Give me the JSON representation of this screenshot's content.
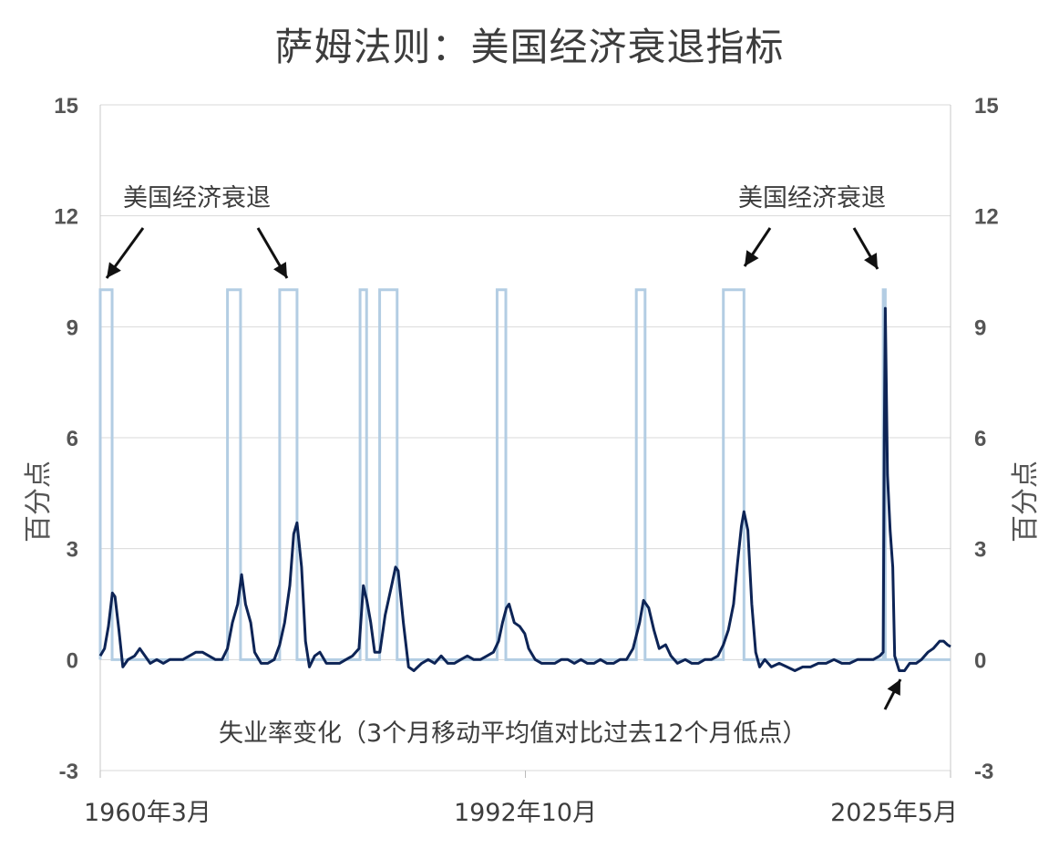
{
  "title": "萨姆法则：美国经济衰退指标",
  "chart_data": {
    "type": "line",
    "title": "萨姆法则：美国经济衰退指标",
    "ylabel_left": "百分点",
    "ylabel_right": "百分点",
    "ylim": [
      -3,
      15
    ],
    "yticks": [
      -3,
      0,
      3,
      6,
      9,
      12,
      15
    ],
    "grid": true,
    "x_range": [
      1960.17,
      2025.33
    ],
    "x_tick_labels": [
      {
        "x": 1960.17,
        "label": "1960年3月"
      },
      {
        "x": 1992.75,
        "label": "1992年10月"
      },
      {
        "x": 2025.33,
        "label": "2025年5月"
      }
    ],
    "annotations": [
      {
        "text": "美国经济衰退",
        "position": "upper-left"
      },
      {
        "text": "美国经济衰退",
        "position": "upper-right"
      },
      {
        "text": "失业率变化（3个月移动平均值对比过去12个月低点）",
        "position": "bottom-right"
      }
    ],
    "series": [
      {
        "name": "美国经济衰退",
        "style": "step",
        "color": "#b3cde3",
        "recession_value": 10,
        "periods": [
          [
            1960.17,
            1961.08
          ],
          [
            1969.92,
            1970.92
          ],
          [
            1973.92,
            1975.25
          ],
          [
            1980.08,
            1980.58
          ],
          [
            1981.58,
            1982.92
          ],
          [
            1990.58,
            1991.25
          ],
          [
            2001.25,
            2001.92
          ],
          [
            2007.92,
            2009.5
          ],
          [
            2020.17,
            2020.33
          ]
        ]
      },
      {
        "name": "失业率变化（3个月移动平均值对比过去12个月低点）",
        "style": "line",
        "color": "#0d2456",
        "points": [
          [
            1960.17,
            0.1
          ],
          [
            1960.5,
            0.3
          ],
          [
            1960.8,
            0.9
          ],
          [
            1961.1,
            1.8
          ],
          [
            1961.3,
            1.7
          ],
          [
            1961.6,
            0.8
          ],
          [
            1961.9,
            -0.2
          ],
          [
            1962.3,
            0.0
          ],
          [
            1962.8,
            0.1
          ],
          [
            1963.2,
            0.3
          ],
          [
            1963.6,
            0.1
          ],
          [
            1964.0,
            -0.1
          ],
          [
            1964.5,
            0.0
          ],
          [
            1965.0,
            -0.1
          ],
          [
            1965.5,
            0.0
          ],
          [
            1966.0,
            0.0
          ],
          [
            1966.5,
            0.0
          ],
          [
            1967.0,
            0.1
          ],
          [
            1967.5,
            0.2
          ],
          [
            1968.0,
            0.2
          ],
          [
            1968.5,
            0.1
          ],
          [
            1969.0,
            0.0
          ],
          [
            1969.5,
            0.0
          ],
          [
            1969.92,
            0.3
          ],
          [
            1970.3,
            1.0
          ],
          [
            1970.7,
            1.5
          ],
          [
            1971.0,
            2.3
          ],
          [
            1971.3,
            1.5
          ],
          [
            1971.7,
            1.0
          ],
          [
            1972.0,
            0.2
          ],
          [
            1972.5,
            -0.1
          ],
          [
            1973.0,
            -0.1
          ],
          [
            1973.5,
            0.0
          ],
          [
            1973.92,
            0.4
          ],
          [
            1974.3,
            1.0
          ],
          [
            1974.7,
            2.0
          ],
          [
            1975.0,
            3.4
          ],
          [
            1975.25,
            3.7
          ],
          [
            1975.6,
            2.5
          ],
          [
            1975.9,
            0.5
          ],
          [
            1976.2,
            -0.2
          ],
          [
            1976.6,
            0.1
          ],
          [
            1977.0,
            0.2
          ],
          [
            1977.5,
            -0.1
          ],
          [
            1978.0,
            -0.1
          ],
          [
            1978.5,
            -0.1
          ],
          [
            1979.0,
            0.0
          ],
          [
            1979.5,
            0.1
          ],
          [
            1980.0,
            0.3
          ],
          [
            1980.33,
            2.0
          ],
          [
            1980.6,
            1.6
          ],
          [
            1980.9,
            1.0
          ],
          [
            1981.2,
            0.2
          ],
          [
            1981.6,
            0.2
          ],
          [
            1982.0,
            1.2
          ],
          [
            1982.5,
            2.0
          ],
          [
            1982.8,
            2.5
          ],
          [
            1983.0,
            2.4
          ],
          [
            1983.4,
            1.0
          ],
          [
            1983.8,
            -0.2
          ],
          [
            1984.2,
            -0.3
          ],
          [
            1984.8,
            -0.1
          ],
          [
            1985.3,
            0.0
          ],
          [
            1985.8,
            -0.1
          ],
          [
            1986.3,
            0.1
          ],
          [
            1986.8,
            -0.1
          ],
          [
            1987.3,
            -0.1
          ],
          [
            1987.8,
            0.0
          ],
          [
            1988.3,
            0.1
          ],
          [
            1988.8,
            0.0
          ],
          [
            1989.3,
            0.0
          ],
          [
            1989.8,
            0.1
          ],
          [
            1990.3,
            0.2
          ],
          [
            1990.7,
            0.5
          ],
          [
            1991.0,
            1.0
          ],
          [
            1991.3,
            1.4
          ],
          [
            1991.5,
            1.5
          ],
          [
            1991.9,
            1.0
          ],
          [
            1992.3,
            0.9
          ],
          [
            1992.7,
            0.7
          ],
          [
            1993.0,
            0.3
          ],
          [
            1993.5,
            0.0
          ],
          [
            1994.0,
            -0.1
          ],
          [
            1994.5,
            -0.1
          ],
          [
            1995.0,
            -0.1
          ],
          [
            1995.5,
            0.0
          ],
          [
            1996.0,
            0.0
          ],
          [
            1996.5,
            -0.1
          ],
          [
            1997.0,
            0.0
          ],
          [
            1997.5,
            -0.1
          ],
          [
            1998.0,
            -0.1
          ],
          [
            1998.5,
            0.0
          ],
          [
            1999.0,
            -0.1
          ],
          [
            1999.5,
            -0.1
          ],
          [
            2000.0,
            0.0
          ],
          [
            2000.5,
            0.0
          ],
          [
            2001.0,
            0.3
          ],
          [
            2001.5,
            1.0
          ],
          [
            2001.8,
            1.6
          ],
          [
            2002.2,
            1.4
          ],
          [
            2002.6,
            0.8
          ],
          [
            2003.0,
            0.3
          ],
          [
            2003.5,
            0.4
          ],
          [
            2003.9,
            0.1
          ],
          [
            2004.4,
            -0.1
          ],
          [
            2005.0,
            0.0
          ],
          [
            2005.5,
            -0.1
          ],
          [
            2006.0,
            -0.1
          ],
          [
            2006.5,
            0.0
          ],
          [
            2007.0,
            0.0
          ],
          [
            2007.5,
            0.1
          ],
          [
            2007.92,
            0.4
          ],
          [
            2008.3,
            0.8
          ],
          [
            2008.7,
            1.5
          ],
          [
            2009.0,
            2.6
          ],
          [
            2009.3,
            3.6
          ],
          [
            2009.5,
            4.0
          ],
          [
            2009.8,
            3.5
          ],
          [
            2010.1,
            1.5
          ],
          [
            2010.4,
            0.2
          ],
          [
            2010.7,
            -0.2
          ],
          [
            2011.1,
            0.0
          ],
          [
            2011.6,
            -0.2
          ],
          [
            2012.2,
            -0.1
          ],
          [
            2012.8,
            -0.2
          ],
          [
            2013.4,
            -0.3
          ],
          [
            2014.0,
            -0.2
          ],
          [
            2014.6,
            -0.2
          ],
          [
            2015.2,
            -0.1
          ],
          [
            2015.8,
            -0.1
          ],
          [
            2016.4,
            0.0
          ],
          [
            2017.0,
            -0.1
          ],
          [
            2017.6,
            -0.1
          ],
          [
            2018.2,
            0.0
          ],
          [
            2018.8,
            0.0
          ],
          [
            2019.4,
            0.0
          ],
          [
            2019.9,
            0.1
          ],
          [
            2020.17,
            0.2
          ],
          [
            2020.25,
            6.0
          ],
          [
            2020.33,
            9.5
          ],
          [
            2020.5,
            5.0
          ],
          [
            2020.7,
            3.5
          ],
          [
            2020.9,
            2.5
          ],
          [
            2021.05,
            0.1
          ],
          [
            2021.4,
            -0.3
          ],
          [
            2021.8,
            -0.3
          ],
          [
            2022.2,
            -0.1
          ],
          [
            2022.7,
            -0.1
          ],
          [
            2023.1,
            0.0
          ],
          [
            2023.6,
            0.2
          ],
          [
            2024.0,
            0.3
          ],
          [
            2024.5,
            0.5
          ],
          [
            2024.8,
            0.5
          ],
          [
            2025.1,
            0.4
          ],
          [
            2025.33,
            0.35
          ]
        ]
      }
    ]
  }
}
